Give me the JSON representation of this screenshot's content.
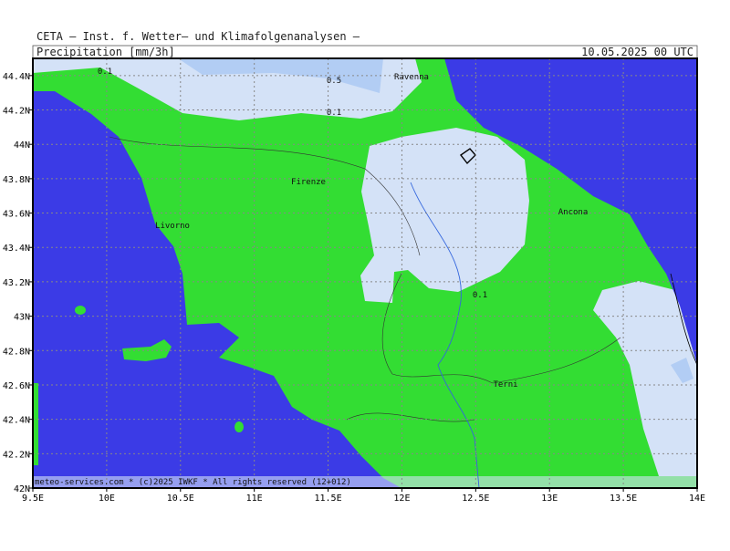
{
  "header": {
    "title": "CETA — Inst. f. Wetter— und Klimafolgenanalysen —",
    "variable": "Precipitation_[mm/3h]",
    "valid_time": "10.05.2025 00 UTC"
  },
  "map": {
    "xlim": [
      9.5,
      14
    ],
    "ylim": [
      42,
      44.5
    ],
    "xticks": [
      {
        "value": 9.5,
        "label": "9.5E"
      },
      {
        "value": 10,
        "label": "10E"
      },
      {
        "value": 10.5,
        "label": "10.5E"
      },
      {
        "value": 11,
        "label": "11E"
      },
      {
        "value": 11.5,
        "label": "11.5E"
      },
      {
        "value": 12,
        "label": "12E"
      },
      {
        "value": 12.5,
        "label": "12.5E"
      },
      {
        "value": 13,
        "label": "13E"
      },
      {
        "value": 13.5,
        "label": "13.5E"
      },
      {
        "value": 14,
        "label": "14E"
      }
    ],
    "yticks": [
      {
        "value": 42,
        "label": "42N"
      },
      {
        "value": 42.2,
        "label": "42.2N"
      },
      {
        "value": 42.4,
        "label": "42.4N"
      },
      {
        "value": 42.6,
        "label": "42.6N"
      },
      {
        "value": 42.8,
        "label": "42.8N"
      },
      {
        "value": 43,
        "label": "43N"
      },
      {
        "value": 43.2,
        "label": "43.2N"
      },
      {
        "value": 43.4,
        "label": "43.4N"
      },
      {
        "value": 43.6,
        "label": "43.6N"
      },
      {
        "value": 43.8,
        "label": "43.8N"
      },
      {
        "value": 44,
        "label": "44N"
      },
      {
        "value": 44.2,
        "label": "44.2N"
      },
      {
        "value": 44.4,
        "label": "44.4N"
      }
    ],
    "places": [
      "Ravenna",
      "Firenze",
      "Livorno",
      "Ancona",
      "Terni"
    ],
    "contour_labels": [
      0.1,
      0.5,
      0.1,
      0.1
    ],
    "footer": "meteo-services.com * (c)2025 IWKF * All rights reserved (12+012)"
  }
}
